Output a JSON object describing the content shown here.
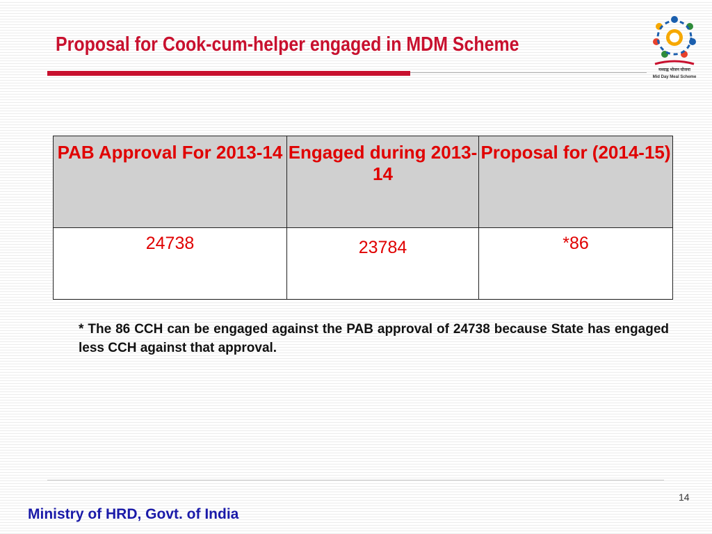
{
  "header": {
    "title": "Proposal for Cook-cum-helper engaged in MDM Scheme",
    "logo_hindi": "मध्याह्न भोजन योजना",
    "logo_caption": "Mid Day Meal Scheme"
  },
  "table": {
    "columns": [
      "PAB Approval For 2013-14",
      "Engaged during 2013-14",
      "Proposal for (2014-15)"
    ],
    "rows": [
      [
        24738,
        23784,
        "*86"
      ]
    ]
  },
  "note": "* The 86 CCH can be engaged against the PAB approval of 24738 because State has engaged less CCH against that approval.",
  "footer": {
    "page_number": 14,
    "organization": "Ministry of HRD, Govt. of India"
  }
}
